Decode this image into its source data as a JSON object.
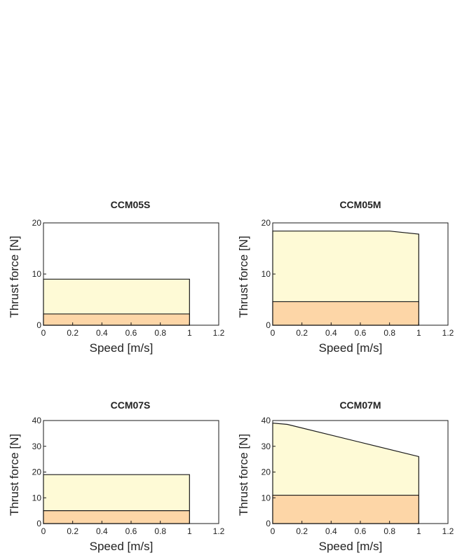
{
  "colors": {
    "continuous_fill": "#fdd6a7",
    "peak_fill": "#fefad6",
    "outline": "#1a1a1a",
    "text": "#222222"
  },
  "chart_data": [
    {
      "type": "area",
      "title": "CCM05S",
      "xlabel": "Speed [m/s]",
      "ylabel": "Thrust force [N]",
      "xlim": [
        0,
        1.2
      ],
      "ylim": [
        0,
        20
      ],
      "xticks": [
        "0",
        "0.2",
        "0.4",
        "0.6",
        "0.8",
        "1",
        "1.2"
      ],
      "yticks": [
        "0",
        "10",
        "20"
      ],
      "yticks_values": [
        0,
        10,
        20
      ],
      "peak": [
        [
          0,
          9
        ],
        [
          1,
          9
        ]
      ],
      "continuous": [
        [
          0,
          2.2
        ],
        [
          1,
          2.2
        ]
      ]
    },
    {
      "type": "area",
      "title": "CCM05M",
      "xlabel": "Speed [m/s]",
      "ylabel": "Thrust force [N]",
      "xlim": [
        0,
        1.2
      ],
      "ylim": [
        0,
        20
      ],
      "xticks": [
        "0",
        "0.2",
        "0.4",
        "0.6",
        "0.8",
        "1",
        "1.2"
      ],
      "yticks": [
        "0",
        "10",
        "20"
      ],
      "yticks_values": [
        0,
        10,
        20
      ],
      "peak": [
        [
          0,
          18.4
        ],
        [
          0.8,
          18.4
        ],
        [
          1,
          17.8
        ]
      ],
      "continuous": [
        [
          0,
          4.6
        ],
        [
          1,
          4.6
        ]
      ]
    },
    {
      "type": "area",
      "title": "CCM07S",
      "xlabel": "Speed [m/s]",
      "ylabel": "Thrust force [N]",
      "xlim": [
        0,
        1.2
      ],
      "ylim": [
        0,
        40
      ],
      "xticks": [
        "0",
        "0.2",
        "0.4",
        "0.6",
        "0.8",
        "1",
        "1.2"
      ],
      "yticks": [
        "0",
        "10",
        "20",
        "30",
        "40"
      ],
      "yticks_values": [
        0,
        10,
        20,
        30,
        40
      ],
      "peak": [
        [
          0,
          19
        ],
        [
          1,
          19
        ]
      ],
      "continuous": [
        [
          0,
          5
        ],
        [
          1,
          5
        ]
      ]
    },
    {
      "type": "area",
      "title": "CCM07M",
      "xlabel": "Speed [m/s]",
      "ylabel": "Thrust force [N]",
      "xlim": [
        0,
        1.2
      ],
      "ylim": [
        0,
        40
      ],
      "xticks": [
        "0",
        "0.2",
        "0.4",
        "0.6",
        "0.8",
        "1",
        "1.2"
      ],
      "yticks": [
        "0",
        "10",
        "20",
        "30",
        "40"
      ],
      "yticks_values": [
        0,
        10,
        20,
        30,
        40
      ],
      "peak": [
        [
          0,
          39
        ],
        [
          0.1,
          38.5
        ],
        [
          1,
          26
        ]
      ],
      "continuous": [
        [
          0,
          11
        ],
        [
          1,
          11
        ]
      ]
    }
  ]
}
